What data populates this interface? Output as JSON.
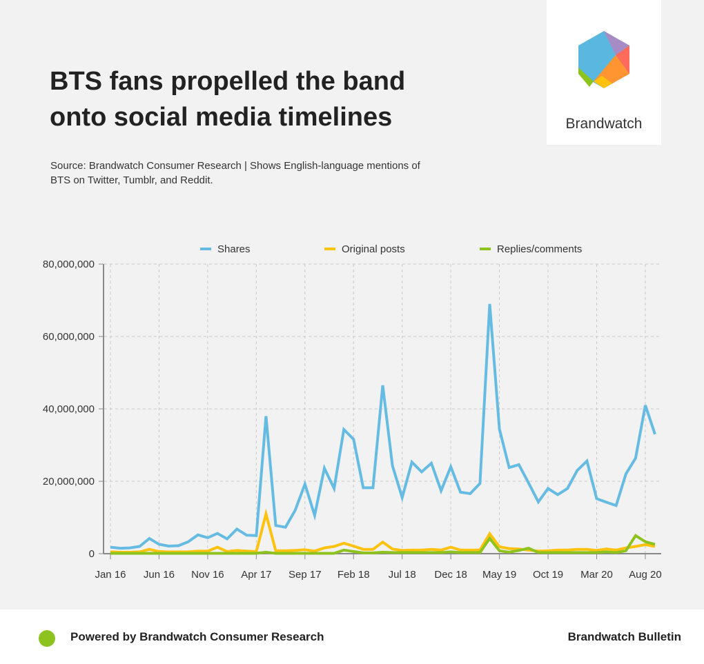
{
  "title": "BTS fans propelled the band onto social media timelines",
  "source": "Source: Brandwatch Consumer Research | Shows English-language mentions of BTS on Twitter, Tumblr, and Reddit.",
  "logo": {
    "text": "Brandwatch"
  },
  "footer": {
    "left": "Powered by Brandwatch Consumer Research",
    "right": "Brandwatch Bulletin"
  },
  "chart_data": {
    "type": "line",
    "title": "",
    "xlabel": "",
    "ylabel": "",
    "ylim": [
      0,
      80000000
    ],
    "yticks": [
      0,
      20000000,
      40000000,
      60000000,
      80000000
    ],
    "ytick_labels": [
      "0",
      "20,000,000",
      "40,000,000",
      "60,000,000",
      "80,000,000"
    ],
    "xtick_labels": [
      "Jan 16",
      "Jun 16",
      "Nov 16",
      "Apr 17",
      "Sep 17",
      "Feb 18",
      "Jul 18",
      "Dec 18",
      "May 19",
      "Oct 19",
      "Mar 20",
      "Aug 20"
    ],
    "x_start": "Jan 2016",
    "x_interval": "month",
    "grid": true,
    "legend": "top",
    "series": [
      {
        "name": "Shares",
        "color": "#66bbe2",
        "values": [
          1.8,
          1.5,
          1.6,
          2.0,
          4.2,
          2.6,
          2.1,
          2.2,
          3.3,
          5.2,
          4.4,
          5.6,
          4.1,
          6.8,
          5.1,
          5.0,
          38,
          7.8,
          7.3,
          12,
          19.2,
          10.6,
          23.6,
          18,
          34.3,
          31.6,
          18.2,
          18.2,
          46.5,
          24.3,
          15.5,
          25.3,
          22.6,
          25,
          17.4,
          24,
          17,
          16.6,
          19.4,
          69,
          34.4,
          23.8,
          24.6,
          19.5,
          14.3,
          18,
          16.3,
          18,
          23,
          25.6,
          15.2,
          14.2,
          13.3,
          22,
          26.4,
          41,
          33
        ]
      },
      {
        "name": "Original posts",
        "color": "#ffc20e",
        "values": [
          0.5,
          0.4,
          0.4,
          0.5,
          1.2,
          0.6,
          0.5,
          0.5,
          0.5,
          0.7,
          0.7,
          1.8,
          0.6,
          0.9,
          0.7,
          0.6,
          11,
          0.8,
          0.8,
          0.9,
          1.1,
          0.7,
          1.6,
          2.0,
          2.9,
          2.1,
          1.2,
          1.2,
          3.2,
          1.3,
          0.9,
          1.0,
          1.0,
          1.2,
          1.0,
          1.8,
          1.0,
          1.0,
          1.0,
          5.5,
          1.9,
          1.4,
          1.3,
          1.0,
          0.7,
          0.8,
          1.0,
          1.0,
          1.2,
          1.2,
          0.9,
          1.3,
          1.0,
          1.6,
          2.0,
          2.5,
          2.0
        ]
      },
      {
        "name": "Replies/comments",
        "color": "#8dc21f",
        "values": [
          0.1,
          0.1,
          0.1,
          0.1,
          0.1,
          0.1,
          0.1,
          0.1,
          0.1,
          0.1,
          0.1,
          0.1,
          0.1,
          0.1,
          0.1,
          0.1,
          0.4,
          0.1,
          0.1,
          0.1,
          0.1,
          0.1,
          0.1,
          0.1,
          1.0,
          0.6,
          0.2,
          0.2,
          0.4,
          0.3,
          0.3,
          0.3,
          0.3,
          0.3,
          0.3,
          0.5,
          0.3,
          0.3,
          0.3,
          4.2,
          0.8,
          0.4,
          0.9,
          1.5,
          0.3,
          0.3,
          0.3,
          0.3,
          0.3,
          0.3,
          0.3,
          0.5,
          0.3,
          0.8,
          5.0,
          3.3,
          2.6
        ]
      }
    ],
    "value_unit_multiplier": 1000000
  }
}
